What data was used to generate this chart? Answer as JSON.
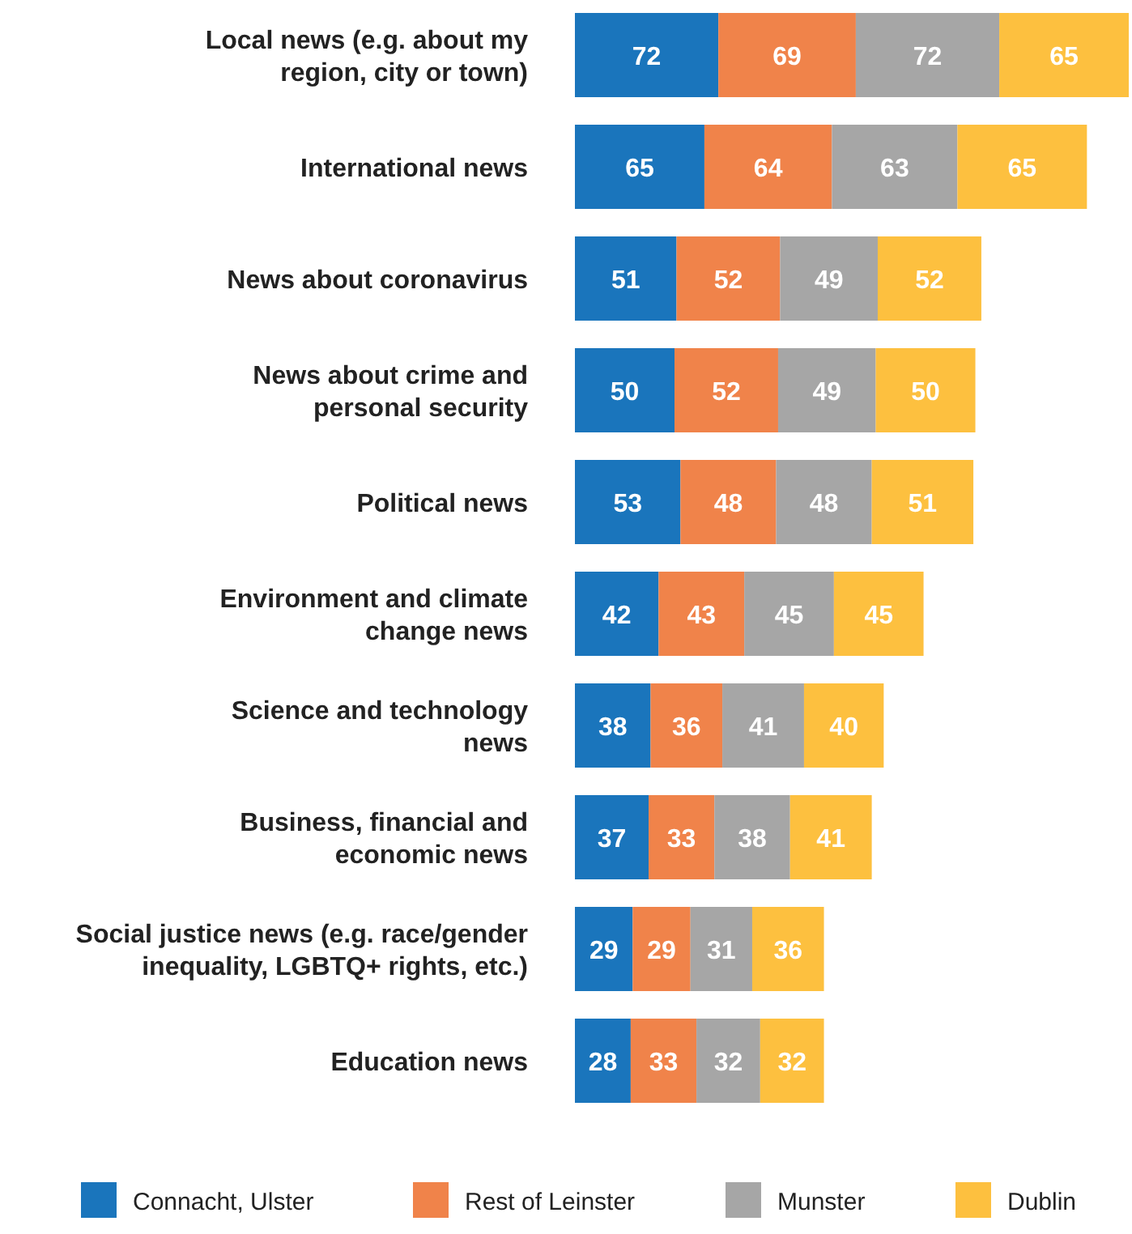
{
  "chart_data": {
    "type": "bar",
    "orientation": "horizontal",
    "stacked": true,
    "data_labels": true,
    "legend": "bottom",
    "categories": [
      "Local news (e.g. about my region, city or town)",
      "International news",
      "News about coronavirus",
      "News about crime and personal security",
      "Political news",
      "Environment and climate change news",
      "Science and technology news",
      "Business, financial and economic news",
      "Social justice news (e.g. race/gender inequality, LGBTQ+ rights, etc.)",
      "Education news"
    ],
    "series": [
      {
        "name": "Connacht, Ulster",
        "color": "#1a75bc",
        "values": [
          72,
          65,
          51,
          50,
          53,
          42,
          38,
          37,
          29,
          28
        ]
      },
      {
        "name": "Rest of Leinster",
        "color": "#f0834a",
        "values": [
          69,
          64,
          52,
          52,
          48,
          43,
          36,
          33,
          29,
          33
        ]
      },
      {
        "name": "Munster",
        "color": "#a6a6a6",
        "values": [
          72,
          63,
          49,
          49,
          48,
          45,
          41,
          38,
          31,
          32
        ]
      },
      {
        "name": "Dublin",
        "color": "#fdc03f",
        "values": [
          65,
          65,
          52,
          50,
          51,
          45,
          40,
          41,
          36,
          32
        ]
      }
    ]
  }
}
